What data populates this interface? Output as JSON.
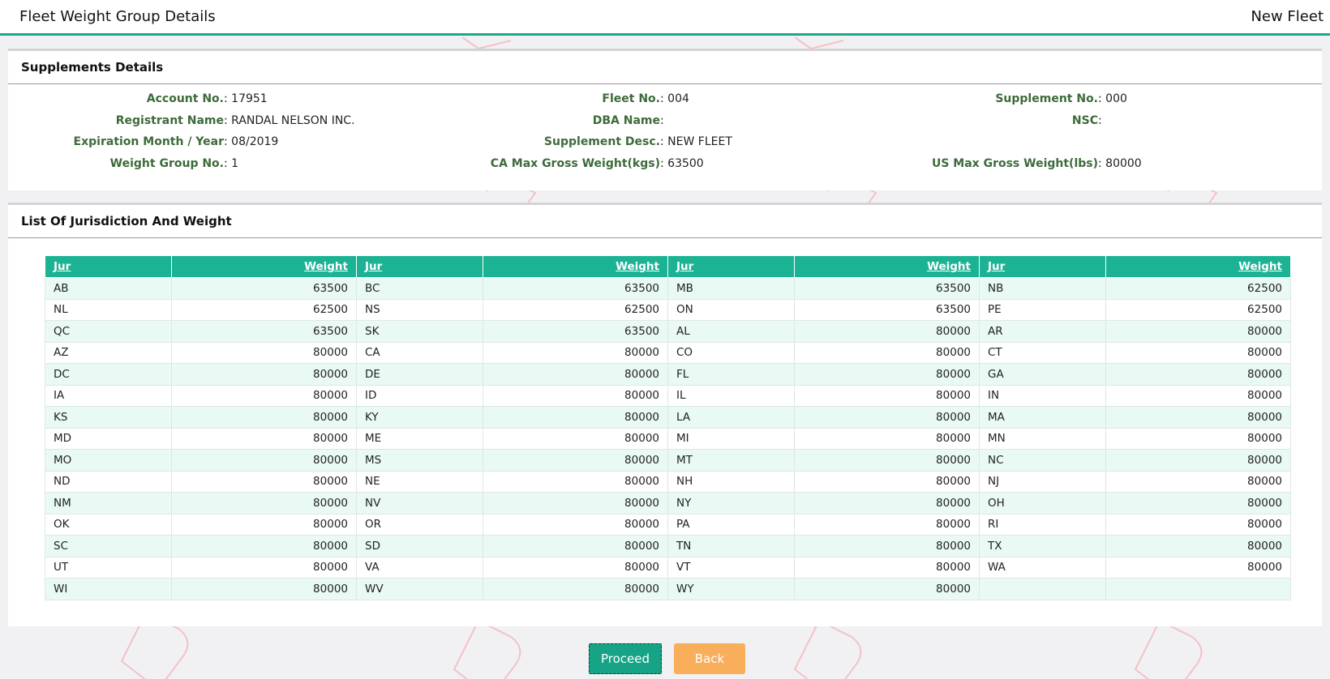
{
  "header": {
    "title": "Fleet Weight Group Details",
    "mode": "New Fleet"
  },
  "supplements": {
    "title": "Supplements Details",
    "fields": [
      [
        {
          "label": "Account No.",
          "value": "17951"
        },
        {
          "label": "Fleet No.",
          "value": "004"
        },
        {
          "label": "Supplement No.",
          "value": "000"
        }
      ],
      [
        {
          "label": "Registrant Name",
          "value": "RANDAL NELSON INC."
        },
        {
          "label": "DBA Name",
          "value": ""
        },
        {
          "label": "NSC",
          "value": ""
        }
      ],
      [
        {
          "label": "Expiration Month / Year",
          "value": "08/2019"
        },
        {
          "label": "Supplement Desc.",
          "value": "NEW FLEET"
        },
        {
          "label": "",
          "value": ""
        }
      ],
      [
        {
          "label": "Weight Group No.",
          "value": "1"
        },
        {
          "label": "CA Max Gross Weight(kgs)",
          "value": "63500"
        },
        {
          "label": "US Max Gross Weight(lbs)",
          "value": "80000"
        }
      ]
    ]
  },
  "jurisdictions": {
    "title": "List Of Jurisdiction And Weight",
    "headers": [
      "Jur",
      "Weight",
      "Jur",
      "Weight",
      "Jur",
      "Weight",
      "Jur",
      "Weight"
    ],
    "rows": [
      [
        "AB",
        "63500",
        "BC",
        "63500",
        "MB",
        "63500",
        "NB",
        "62500"
      ],
      [
        "NL",
        "62500",
        "NS",
        "62500",
        "ON",
        "63500",
        "PE",
        "62500"
      ],
      [
        "QC",
        "63500",
        "SK",
        "63500",
        "AL",
        "80000",
        "AR",
        "80000"
      ],
      [
        "AZ",
        "80000",
        "CA",
        "80000",
        "CO",
        "80000",
        "CT",
        "80000"
      ],
      [
        "DC",
        "80000",
        "DE",
        "80000",
        "FL",
        "80000",
        "GA",
        "80000"
      ],
      [
        "IA",
        "80000",
        "ID",
        "80000",
        "IL",
        "80000",
        "IN",
        "80000"
      ],
      [
        "KS",
        "80000",
        "KY",
        "80000",
        "LA",
        "80000",
        "MA",
        "80000"
      ],
      [
        "MD",
        "80000",
        "ME",
        "80000",
        "MI",
        "80000",
        "MN",
        "80000"
      ],
      [
        "MO",
        "80000",
        "MS",
        "80000",
        "MT",
        "80000",
        "NC",
        "80000"
      ],
      [
        "ND",
        "80000",
        "NE",
        "80000",
        "NH",
        "80000",
        "NJ",
        "80000"
      ],
      [
        "NM",
        "80000",
        "NV",
        "80000",
        "NY",
        "80000",
        "OH",
        "80000"
      ],
      [
        "OK",
        "80000",
        "OR",
        "80000",
        "PA",
        "80000",
        "RI",
        "80000"
      ],
      [
        "SC",
        "80000",
        "SD",
        "80000",
        "TN",
        "80000",
        "TX",
        "80000"
      ],
      [
        "UT",
        "80000",
        "VA",
        "80000",
        "VT",
        "80000",
        "WA",
        "80000"
      ],
      [
        "WI",
        "80000",
        "WV",
        "80000",
        "WY",
        "80000",
        "",
        ""
      ]
    ]
  },
  "buttons": {
    "proceed": "Proceed",
    "back": "Back"
  }
}
